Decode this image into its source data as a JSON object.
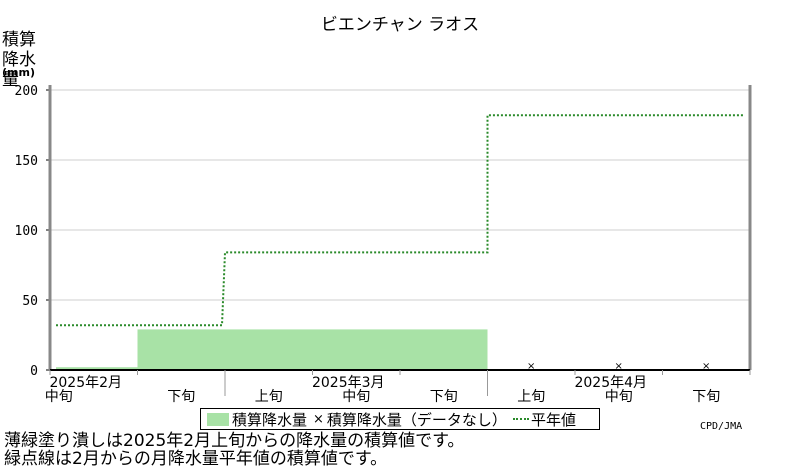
{
  "chart_data": {
    "type": "bar",
    "title": "ビエンチャン ラオス",
    "ylabel": "積算降水量",
    "yunit": "(mm)",
    "ylim": [
      0,
      200
    ],
    "yticks": [
      0,
      50,
      100,
      150,
      200
    ],
    "grid": true,
    "categories": [
      "2月中旬",
      "2月下旬",
      "3月上旬",
      "3月中旬",
      "3月下旬",
      "4月上旬",
      "4月中旬",
      "4月下旬"
    ],
    "x_tick_labels": [
      {
        "line1": "2025年2月",
        "line2": "中旬"
      },
      {
        "line1": "",
        "line2": "下旬"
      },
      {
        "line1": "",
        "line2": "上旬"
      },
      {
        "line1": "2025年3月",
        "line2": "中旬"
      },
      {
        "line1": "",
        "line2": "下旬"
      },
      {
        "line1": "",
        "line2": "上旬"
      },
      {
        "line1": "2025年4月",
        "line2": "中旬"
      },
      {
        "line1": "",
        "line2": "下旬"
      }
    ],
    "series": [
      {
        "name": "積算降水量",
        "values": [
          2,
          29,
          29,
          29,
          29,
          null,
          null,
          null
        ],
        "color": "#a8e2a6"
      },
      {
        "name": "積算降水量（データなし）",
        "x_marks": [
          "4月上旬",
          "4月中旬",
          "4月下旬"
        ]
      },
      {
        "name": "平年値",
        "monthly_values": [
          {
            "month": "2月",
            "value": 32
          },
          {
            "month": "3月",
            "value": 84
          },
          {
            "month": "4月",
            "value": 182
          }
        ],
        "color": "#2a8a2a"
      }
    ],
    "legend_position": "bottom-center"
  },
  "legend": {
    "items": [
      "積算降水量",
      "積算降水量（データなし）",
      "平年値"
    ]
  },
  "credit": "CPD/JMA",
  "notes": [
    "薄緑塗り潰しは2025年2月上旬からの降水量の積算値です。",
    "緑点線は2月からの月降水量平年値の積算値です。"
  ]
}
